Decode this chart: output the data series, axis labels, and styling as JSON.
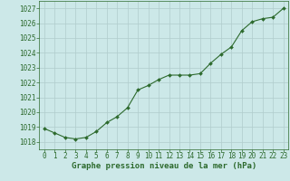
{
  "x": [
    0,
    1,
    2,
    3,
    4,
    5,
    6,
    7,
    8,
    9,
    10,
    11,
    12,
    13,
    14,
    15,
    16,
    17,
    18,
    19,
    20,
    21,
    22,
    23
  ],
  "y": [
    1018.9,
    1018.6,
    1018.3,
    1018.2,
    1018.3,
    1018.7,
    1019.3,
    1019.7,
    1020.3,
    1021.5,
    1021.8,
    1022.2,
    1022.5,
    1022.5,
    1022.5,
    1022.6,
    1023.3,
    1023.9,
    1024.4,
    1025.5,
    1026.1,
    1026.3,
    1026.4,
    1027.0
  ],
  "xlim": [
    -0.5,
    23.5
  ],
  "ylim": [
    1017.5,
    1027.5
  ],
  "yticks": [
    1018,
    1019,
    1020,
    1021,
    1022,
    1023,
    1024,
    1025,
    1026,
    1027
  ],
  "xticks": [
    0,
    1,
    2,
    3,
    4,
    5,
    6,
    7,
    8,
    9,
    10,
    11,
    12,
    13,
    14,
    15,
    16,
    17,
    18,
    19,
    20,
    21,
    22,
    23
  ],
  "xlabel": "Graphe pression niveau de la mer (hPa)",
  "line_color": "#2d6a2d",
  "marker_color": "#2d6a2d",
  "bg_color": "#cce8e8",
  "grid_color": "#b0cccc",
  "text_color": "#2d6a2d",
  "xlabel_fontsize": 6.5,
  "tick_fontsize": 5.5,
  "marker": "D",
  "marker_size": 2.0,
  "linewidth": 0.8
}
